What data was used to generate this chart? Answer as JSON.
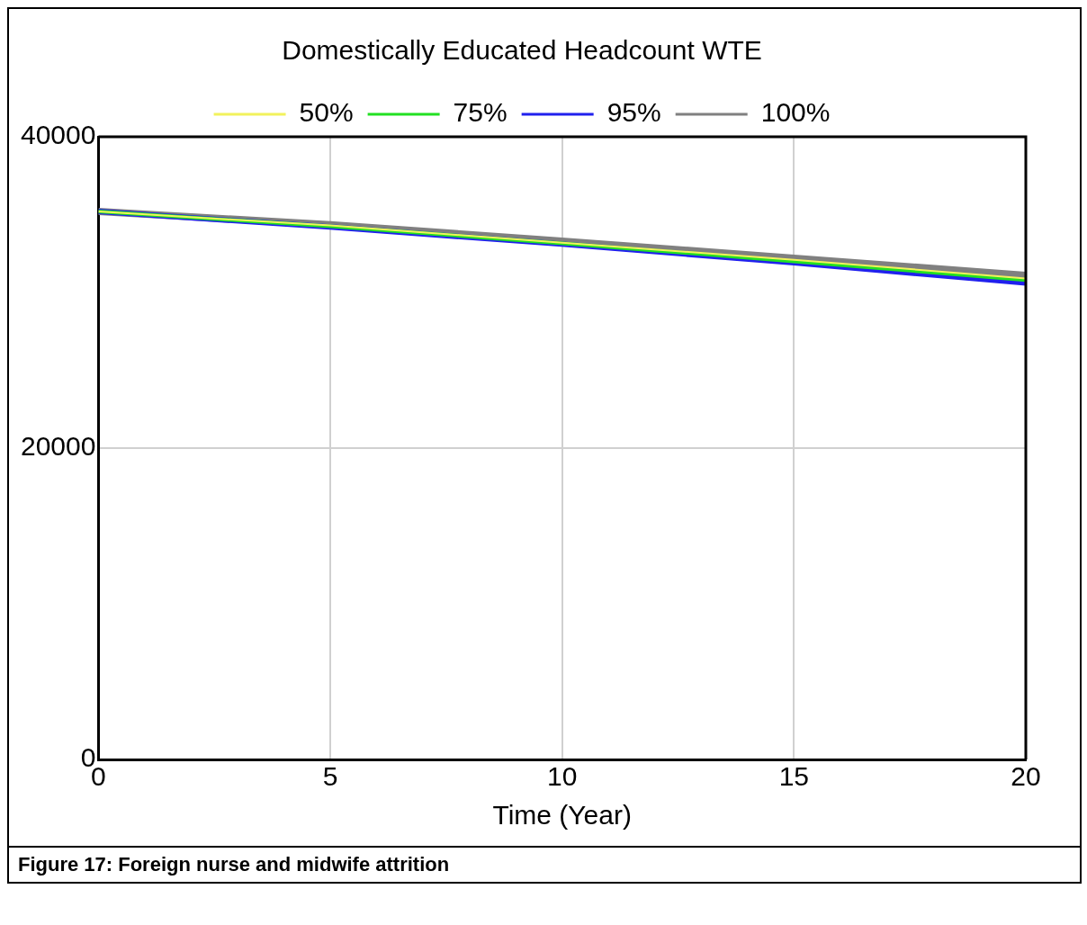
{
  "chart_data": {
    "type": "line",
    "title": "Domestically Educated Headcount WTE",
    "xlabel": "Time (Year)",
    "x": [
      0,
      5,
      10,
      15,
      20
    ],
    "series": [
      {
        "name": "50%",
        "color": "#f2f25c",
        "values": [
          35200,
          34300,
          33200,
          32100,
          30900
        ]
      },
      {
        "name": "75%",
        "color": "#22e022",
        "values": [
          35200,
          34250,
          33150,
          32000,
          30800
        ]
      },
      {
        "name": "95%",
        "color": "#2020ee",
        "values": [
          35200,
          34200,
          33100,
          31900,
          30600
        ]
      },
      {
        "name": "100%",
        "color": "#808080",
        "values": [
          35200,
          34350,
          33300,
          32200,
          31100
        ]
      }
    ],
    "xlim": [
      0,
      20
    ],
    "xticks": [
      0,
      5,
      10,
      15,
      20
    ],
    "ylim": [
      0,
      40000
    ],
    "yticks": [
      0,
      20000,
      40000
    ],
    "grid": true,
    "legend": "top",
    "marker": "none",
    "line_style": "solid",
    "annotations": [
      "Figure 17: Foreign nurse and midwife attrition"
    ]
  }
}
